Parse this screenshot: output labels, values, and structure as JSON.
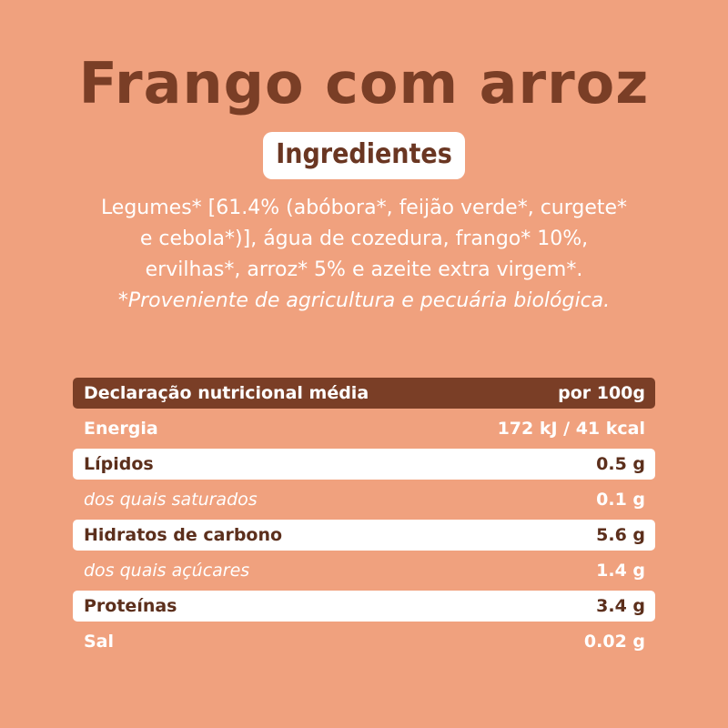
{
  "title": "Frango com arroz",
  "ingredients": {
    "heading": "Ingredientes",
    "lines": [
      "Legumes* [61.4% (abóbora*, feijão verde*, curgete*",
      "e cebola*)], água de cozedura, frango* 10%,",
      "ervilhas*, arroz* 5% e azeite extra virgem*."
    ],
    "note": "*Proveniente de agricultura e pecuária biológica."
  },
  "nutrition": {
    "header": {
      "label": "Declaração nutricional média",
      "value": "por 100g"
    },
    "rows": [
      {
        "label": "Energia",
        "value": "172 kJ / 41 kcal"
      },
      {
        "label": "Lípidos",
        "value": "0.5 g"
      },
      {
        "label": "dos quais saturados",
        "value": "0.1 g"
      },
      {
        "label": "Hidratos de carbono",
        "value": "5.6 g"
      },
      {
        "label": "dos quais açúcares",
        "value": "1.4 g"
      },
      {
        "label": "Proteínas",
        "value": "3.4 g"
      },
      {
        "label": "Sal",
        "value": "0.02 g"
      }
    ]
  },
  "colors": {
    "background": "#f0a17e",
    "brown": "#7a3e26",
    "white": "#ffffff"
  }
}
